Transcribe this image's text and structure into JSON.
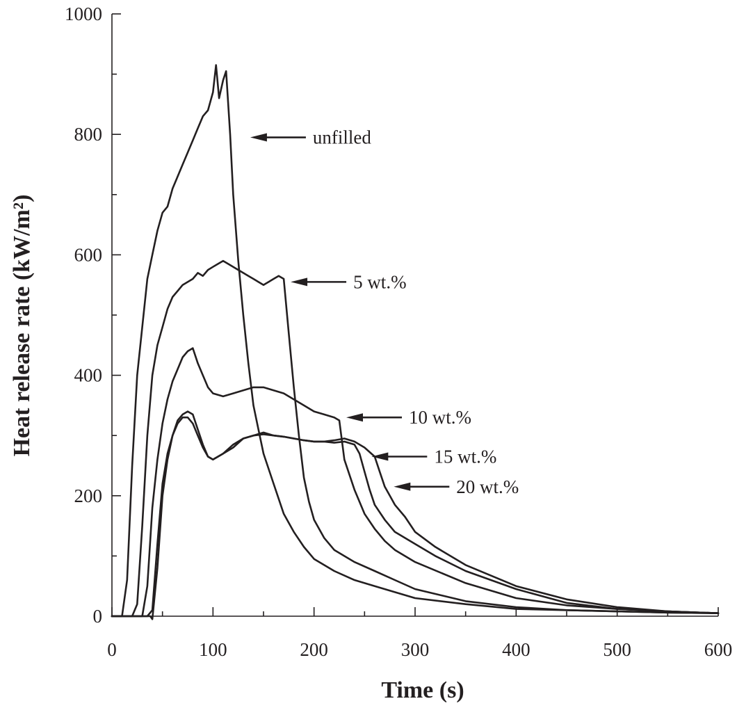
{
  "chart_data": {
    "type": "line",
    "title": "",
    "xlabel": "Time (s)",
    "ylabel": "Heat release rate (kW/m²)",
    "xlim": [
      0,
      600
    ],
    "ylim": [
      0,
      1000
    ],
    "xticks": [
      0,
      100,
      200,
      300,
      400,
      500,
      600
    ],
    "yticks": [
      0,
      200,
      400,
      600,
      800,
      1000
    ],
    "x_minor_step": 50,
    "y_minor_step": 100,
    "grid": false,
    "legend": "none (curves labeled with arrows)",
    "series": [
      {
        "name": "unfilled",
        "x": [
          0,
          10,
          15,
          20,
          25,
          30,
          35,
          40,
          45,
          50,
          55,
          60,
          65,
          70,
          75,
          80,
          85,
          90,
          95,
          100,
          103,
          106,
          110,
          113,
          117,
          120,
          125,
          130,
          135,
          140,
          145,
          150,
          160,
          170,
          180,
          190,
          200,
          220,
          240,
          260,
          280,
          300,
          350,
          400,
          450,
          500,
          550,
          600
        ],
        "y": [
          0,
          0,
          60,
          250,
          400,
          480,
          560,
          600,
          640,
          670,
          680,
          710,
          730,
          750,
          770,
          790,
          810,
          830,
          840,
          870,
          915,
          860,
          890,
          905,
          800,
          700,
          590,
          500,
          420,
          350,
          310,
          270,
          220,
          170,
          140,
          115,
          95,
          75,
          60,
          50,
          40,
          30,
          20,
          12,
          10,
          8,
          6,
          5
        ]
      },
      {
        "name": "5 wt.%",
        "x": [
          0,
          20,
          25,
          30,
          35,
          40,
          45,
          50,
          55,
          60,
          65,
          70,
          75,
          80,
          85,
          90,
          95,
          100,
          105,
          110,
          115,
          120,
          125,
          130,
          135,
          140,
          145,
          150,
          155,
          160,
          165,
          170,
          175,
          180,
          185,
          190,
          195,
          200,
          210,
          220,
          240,
          260,
          280,
          300,
          350,
          400,
          450,
          500,
          550,
          600
        ],
        "y": [
          0,
          0,
          20,
          150,
          300,
          400,
          450,
          480,
          510,
          530,
          540,
          550,
          555,
          560,
          570,
          565,
          575,
          580,
          585,
          590,
          585,
          580,
          575,
          570,
          565,
          560,
          555,
          550,
          555,
          560,
          565,
          560,
          470,
          380,
          300,
          230,
          190,
          160,
          130,
          110,
          90,
          75,
          60,
          45,
          25,
          15,
          10,
          8,
          6,
          5
        ]
      },
      {
        "name": "10 wt.%",
        "x": [
          0,
          30,
          35,
          40,
          45,
          50,
          55,
          60,
          65,
          70,
          75,
          80,
          85,
          90,
          95,
          100,
          110,
          120,
          130,
          140,
          150,
          160,
          170,
          180,
          190,
          200,
          210,
          220,
          225,
          230,
          240,
          250,
          260,
          270,
          280,
          300,
          350,
          400,
          450,
          500,
          550,
          600
        ],
        "y": [
          0,
          0,
          50,
          180,
          260,
          320,
          360,
          390,
          410,
          430,
          440,
          445,
          420,
          400,
          380,
          370,
          365,
          370,
          375,
          380,
          380,
          375,
          370,
          360,
          350,
          340,
          335,
          330,
          325,
          260,
          210,
          170,
          145,
          125,
          110,
          90,
          55,
          30,
          18,
          12,
          8,
          5
        ]
      },
      {
        "name": "15 wt.%",
        "x": [
          0,
          35,
          40,
          45,
          50,
          55,
          60,
          65,
          70,
          75,
          80,
          85,
          90,
          95,
          100,
          110,
          120,
          130,
          140,
          150,
          160,
          170,
          180,
          190,
          200,
          210,
          220,
          230,
          240,
          245,
          250,
          255,
          260,
          270,
          280,
          300,
          320,
          350,
          400,
          450,
          500,
          550,
          600
        ],
        "y": [
          0,
          0,
          10,
          120,
          220,
          270,
          300,
          320,
          330,
          330,
          320,
          300,
          280,
          265,
          260,
          270,
          285,
          295,
          300,
          305,
          300,
          298,
          295,
          292,
          290,
          290,
          288,
          290,
          285,
          270,
          240,
          210,
          185,
          160,
          140,
          120,
          100,
          75,
          45,
          22,
          12,
          8,
          5
        ]
      },
      {
        "name": "20 wt.%",
        "x": [
          0,
          38,
          40,
          45,
          50,
          55,
          60,
          65,
          70,
          75,
          80,
          85,
          90,
          95,
          100,
          110,
          120,
          130,
          140,
          150,
          160,
          170,
          180,
          190,
          200,
          210,
          220,
          230,
          240,
          250,
          260,
          265,
          270,
          275,
          280,
          290,
          300,
          320,
          350,
          400,
          450,
          500,
          550,
          600
        ],
        "y": [
          0,
          0,
          -5,
          80,
          200,
          260,
          300,
          325,
          335,
          340,
          335,
          310,
          285,
          265,
          260,
          270,
          280,
          295,
          300,
          302,
          300,
          298,
          295,
          292,
          290,
          290,
          292,
          295,
          290,
          280,
          265,
          240,
          215,
          200,
          185,
          165,
          140,
          115,
          85,
          50,
          28,
          15,
          8,
          5
        ]
      }
    ],
    "annotations": [
      {
        "text": "unfilled",
        "target": [
          130,
          795
        ]
      },
      {
        "text": "5 wt.%",
        "target": [
          170,
          555
        ]
      },
      {
        "text": "10 wt.%",
        "target": [
          225,
          330
        ]
      },
      {
        "text": "15 wt.%",
        "target": [
          250,
          265
        ]
      },
      {
        "text": "20 wt.%",
        "target": [
          272,
          215
        ]
      }
    ]
  }
}
